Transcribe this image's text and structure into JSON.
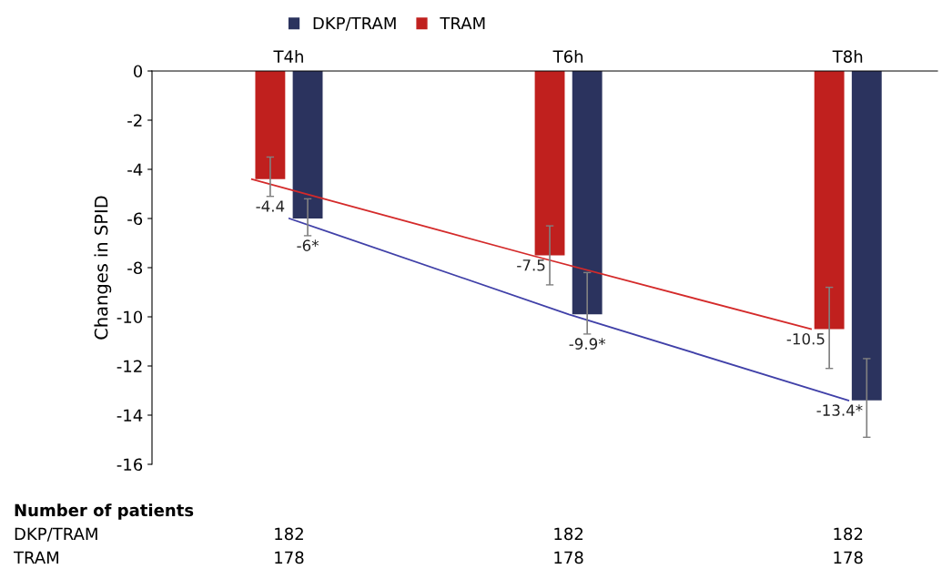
{
  "chart_data": {
    "type": "bar",
    "ylabel": "Changes in SPID",
    "categories": [
      "T4h",
      "T6h",
      "T8h"
    ],
    "series": [
      {
        "name": "TRAM",
        "color": "#c0201e",
        "values": [
          -4.4,
          -7.5,
          -10.5
        ],
        "errors": [
          [
            -5.1,
            -3.5
          ],
          [
            -8.7,
            -6.3
          ],
          [
            -12.1,
            -8.8
          ]
        ],
        "value_labels": [
          "-4.4",
          "-7.5",
          "-10.5"
        ]
      },
      {
        "name": "DKP/TRAM",
        "color": "#2b335e",
        "values": [
          -6,
          -9.9,
          -13.4
        ],
        "errors": [
          [
            -6.7,
            -5.2
          ],
          [
            -10.7,
            -8.2
          ],
          [
            -14.9,
            -11.7
          ]
        ],
        "value_labels": [
          "-6*",
          "-9.9*",
          "-13.4*"
        ]
      },
      {
        "type": "line",
        "color": "#d42a2a",
        "values": [
          -4.4,
          -7.5,
          -10.5
        ]
      },
      {
        "type": "line",
        "color": "#4040a8",
        "values": [
          -6,
          -9.9,
          -13.4
        ]
      }
    ],
    "ylim": [
      -16,
      0
    ],
    "yticks": [
      -16,
      -14,
      -12,
      -10,
      -8,
      -6,
      -4,
      -2,
      0
    ],
    "grid": false,
    "legend": "top",
    "annotations": [
      "Number of patients",
      "DKP/TRAM",
      "182",
      "182",
      "182",
      "TRAM",
      "178",
      "178",
      "178"
    ]
  }
}
